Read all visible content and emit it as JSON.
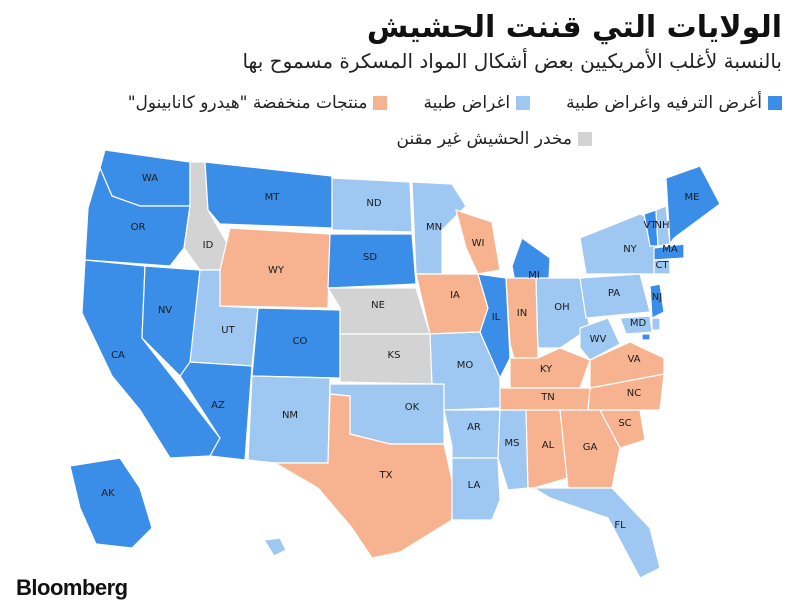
{
  "header": {
    "title": "الولايات التي قننت الحشيش",
    "subtitle": "بالنسبة لأغلب الأمريكيين بعض أشكال المواد المسكرة مسموح بها"
  },
  "legend": {
    "items": [
      {
        "key": "rec",
        "label": "أغرض الترفيه واغراض طبية",
        "color": "#3b8ee8"
      },
      {
        "key": "med",
        "label": "اغراض طبية",
        "color": "#9ec7f2"
      },
      {
        "key": "low",
        "label": "منتجات منخفضة \"هيدرو كانابينول\"",
        "color": "#f7b38f"
      },
      {
        "key": "none",
        "label": "مخدر الحشيش غير مقنن",
        "color": "#d3d3d3"
      }
    ]
  },
  "states": [
    {
      "code": "WA",
      "cat": "rec"
    },
    {
      "code": "OR",
      "cat": "rec"
    },
    {
      "code": "CA",
      "cat": "rec"
    },
    {
      "code": "NV",
      "cat": "rec"
    },
    {
      "code": "ID",
      "cat": "none"
    },
    {
      "code": "MT",
      "cat": "rec"
    },
    {
      "code": "WY",
      "cat": "low"
    },
    {
      "code": "UT",
      "cat": "med"
    },
    {
      "code": "AZ",
      "cat": "rec"
    },
    {
      "code": "CO",
      "cat": "rec"
    },
    {
      "code": "NM",
      "cat": "med"
    },
    {
      "code": "ND",
      "cat": "med"
    },
    {
      "code": "SD",
      "cat": "rec"
    },
    {
      "code": "NE",
      "cat": "none"
    },
    {
      "code": "KS",
      "cat": "none"
    },
    {
      "code": "OK",
      "cat": "med"
    },
    {
      "code": "TX",
      "cat": "low"
    },
    {
      "code": "MN",
      "cat": "med"
    },
    {
      "code": "IA",
      "cat": "low"
    },
    {
      "code": "MO",
      "cat": "med"
    },
    {
      "code": "AR",
      "cat": "med"
    },
    {
      "code": "LA",
      "cat": "med"
    },
    {
      "code": "WI",
      "cat": "low"
    },
    {
      "code": "IL",
      "cat": "rec"
    },
    {
      "code": "MS",
      "cat": "med"
    },
    {
      "code": "MI",
      "cat": "rec"
    },
    {
      "code": "IN",
      "cat": "low"
    },
    {
      "code": "KY",
      "cat": "low"
    },
    {
      "code": "TN",
      "cat": "low"
    },
    {
      "code": "AL",
      "cat": "low"
    },
    {
      "code": "OH",
      "cat": "med"
    },
    {
      "code": "GA",
      "cat": "low"
    },
    {
      "code": "FL",
      "cat": "med"
    },
    {
      "code": "SC",
      "cat": "low"
    },
    {
      "code": "NC",
      "cat": "low"
    },
    {
      "code": "VA",
      "cat": "low"
    },
    {
      "code": "WV",
      "cat": "med"
    },
    {
      "code": "PA",
      "cat": "med"
    },
    {
      "code": "NY",
      "cat": "med"
    },
    {
      "code": "VT",
      "cat": "rec"
    },
    {
      "code": "NH",
      "cat": "med"
    },
    {
      "code": "ME",
      "cat": "rec"
    },
    {
      "code": "MA",
      "cat": "rec"
    },
    {
      "code": "CT",
      "cat": "med"
    },
    {
      "code": "NJ",
      "cat": "rec"
    },
    {
      "code": "MD",
      "cat": "med"
    },
    {
      "code": "DE",
      "cat": "med"
    },
    {
      "code": "DC",
      "cat": "rec"
    },
    {
      "code": "AK",
      "cat": "rec"
    },
    {
      "code": "HI",
      "cat": "med"
    }
  ],
  "footer": {
    "logo_text": "Bloomberg"
  }
}
